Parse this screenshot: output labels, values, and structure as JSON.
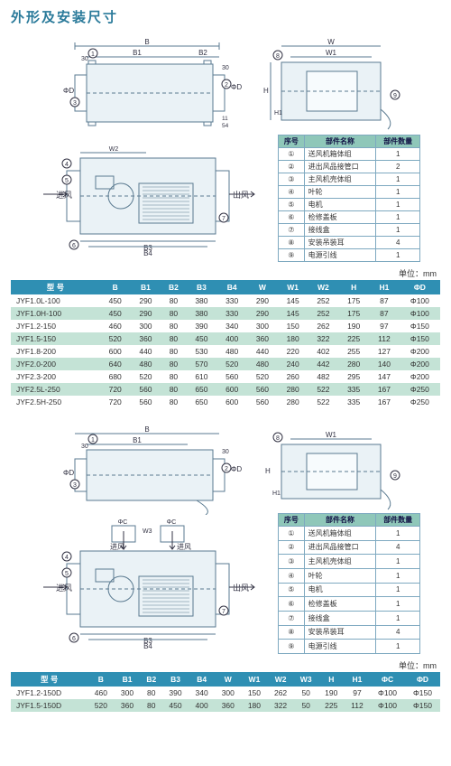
{
  "page_title": "外形及安装尺寸",
  "unit_label": "单位：mm",
  "diagrams": {
    "top_labels": {
      "inlet": "进风",
      "outlet": "出风"
    },
    "dim_labels": [
      "B",
      "B1",
      "B2",
      "B3",
      "B4",
      "W",
      "W1",
      "W2",
      "H",
      "H1",
      "30",
      "1",
      "2",
      "3",
      "4",
      "5",
      "6",
      "7",
      "8",
      "9",
      "ΦD",
      "ΦC",
      "W3",
      "11",
      "54"
    ],
    "stroke": "#5a7a90",
    "fill": "#eaf2f6"
  },
  "parts1": {
    "headers": [
      "序号",
      "部件名称",
      "部件数量"
    ],
    "rows": [
      [
        "①",
        "送风机箱体组",
        "1"
      ],
      [
        "②",
        "进出风品接管口",
        "2"
      ],
      [
        "③",
        "主风机壳体组",
        "1"
      ],
      [
        "④",
        "叶轮",
        "1"
      ],
      [
        "⑤",
        "电机",
        "1"
      ],
      [
        "⑥",
        "检修盖板",
        "1"
      ],
      [
        "⑦",
        "接线盒",
        "1"
      ],
      [
        "⑧",
        "安装吊装耳",
        "4"
      ],
      [
        "⑨",
        "电源引线",
        "1"
      ]
    ]
  },
  "parts2": {
    "headers": [
      "序号",
      "部件名称",
      "部件数量"
    ],
    "rows": [
      [
        "①",
        "送风机箱体组",
        "1"
      ],
      [
        "②",
        "进出风品接管口",
        "4"
      ],
      [
        "③",
        "主风机壳体组",
        "1"
      ],
      [
        "④",
        "叶轮",
        "1"
      ],
      [
        "⑤",
        "电机",
        "1"
      ],
      [
        "⑥",
        "检修盖板",
        "1"
      ],
      [
        "⑦",
        "接线盒",
        "1"
      ],
      [
        "⑧",
        "安装吊装耳",
        "4"
      ],
      [
        "⑨",
        "电源引线",
        "1"
      ]
    ]
  },
  "dim1": {
    "headers": [
      "型 号",
      "B",
      "B1",
      "B2",
      "B3",
      "B4",
      "W",
      "W1",
      "W2",
      "H",
      "H1",
      "ΦD"
    ],
    "rows": [
      [
        "JYF1.0L-100",
        "450",
        "290",
        "80",
        "380",
        "330",
        "290",
        "145",
        "252",
        "175",
        "87",
        "Φ100"
      ],
      [
        "JYF1.0H-100",
        "450",
        "290",
        "80",
        "380",
        "330",
        "290",
        "145",
        "252",
        "175",
        "87",
        "Φ100"
      ],
      [
        "JYF1.2-150",
        "460",
        "300",
        "80",
        "390",
        "340",
        "300",
        "150",
        "262",
        "190",
        "97",
        "Φ150"
      ],
      [
        "JYF1.5-150",
        "520",
        "360",
        "80",
        "450",
        "400",
        "360",
        "180",
        "322",
        "225",
        "112",
        "Φ150"
      ],
      [
        "JYF1.8-200",
        "600",
        "440",
        "80",
        "530",
        "480",
        "440",
        "220",
        "402",
        "255",
        "127",
        "Φ200"
      ],
      [
        "JYF2.0-200",
        "640",
        "480",
        "80",
        "570",
        "520",
        "480",
        "240",
        "442",
        "280",
        "140",
        "Φ200"
      ],
      [
        "JYF2.3-200",
        "680",
        "520",
        "80",
        "610",
        "560",
        "520",
        "260",
        "482",
        "295",
        "147",
        "Φ200"
      ],
      [
        "JYF2.5L-250",
        "720",
        "560",
        "80",
        "650",
        "600",
        "560",
        "280",
        "522",
        "335",
        "167",
        "Φ250"
      ],
      [
        "JYF2.5H-250",
        "720",
        "560",
        "80",
        "650",
        "600",
        "560",
        "280",
        "522",
        "335",
        "167",
        "Φ250"
      ]
    ]
  },
  "dim2": {
    "headers": [
      "型 号",
      "B",
      "B1",
      "B2",
      "B3",
      "B4",
      "W",
      "W1",
      "W2",
      "W3",
      "H",
      "H1",
      "ΦC",
      "ΦD"
    ],
    "rows": [
      [
        "JYF1.2-150D",
        "460",
        "300",
        "80",
        "390",
        "340",
        "300",
        "150",
        "262",
        "50",
        "190",
        "97",
        "Φ100",
        "Φ150"
      ],
      [
        "JYF1.5-150D",
        "520",
        "360",
        "80",
        "450",
        "400",
        "360",
        "180",
        "322",
        "50",
        "225",
        "112",
        "Φ100",
        "Φ150"
      ]
    ]
  }
}
